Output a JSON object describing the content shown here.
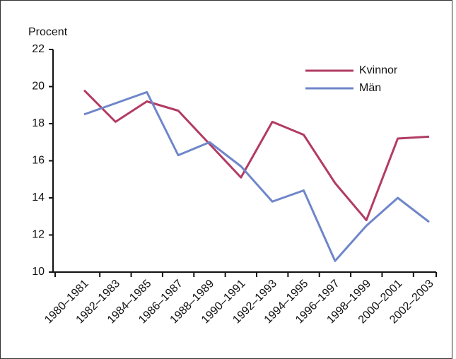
{
  "chart_data": {
    "type": "line",
    "y_label": "Procent",
    "categories": [
      "1980–1981",
      "1982–1983",
      "1984–1985",
      "1986–1987",
      "1988–1989",
      "1990–1991",
      "1992–1993",
      "1994–1995",
      "1996–1997",
      "1998–1999",
      "2000–2001",
      "2002–2003"
    ],
    "series": [
      {
        "name": "Kvinnor",
        "color": "#b23b64",
        "values": [
          19.8,
          18.1,
          19.2,
          18.7,
          16.9,
          15.1,
          18.1,
          17.4,
          14.8,
          12.8,
          17.2,
          17.3
        ]
      },
      {
        "name": "Män",
        "color": "#6f86c9",
        "values": [
          18.5,
          19.1,
          19.7,
          16.3,
          17.0,
          15.7,
          13.8,
          14.4,
          10.6,
          12.5,
          14.0,
          12.7
        ]
      }
    ],
    "ylim": [
      10,
      22
    ],
    "yticks": [
      10,
      12,
      14,
      16,
      18,
      20,
      22
    ],
    "grid": false,
    "legend": "upper-right"
  }
}
